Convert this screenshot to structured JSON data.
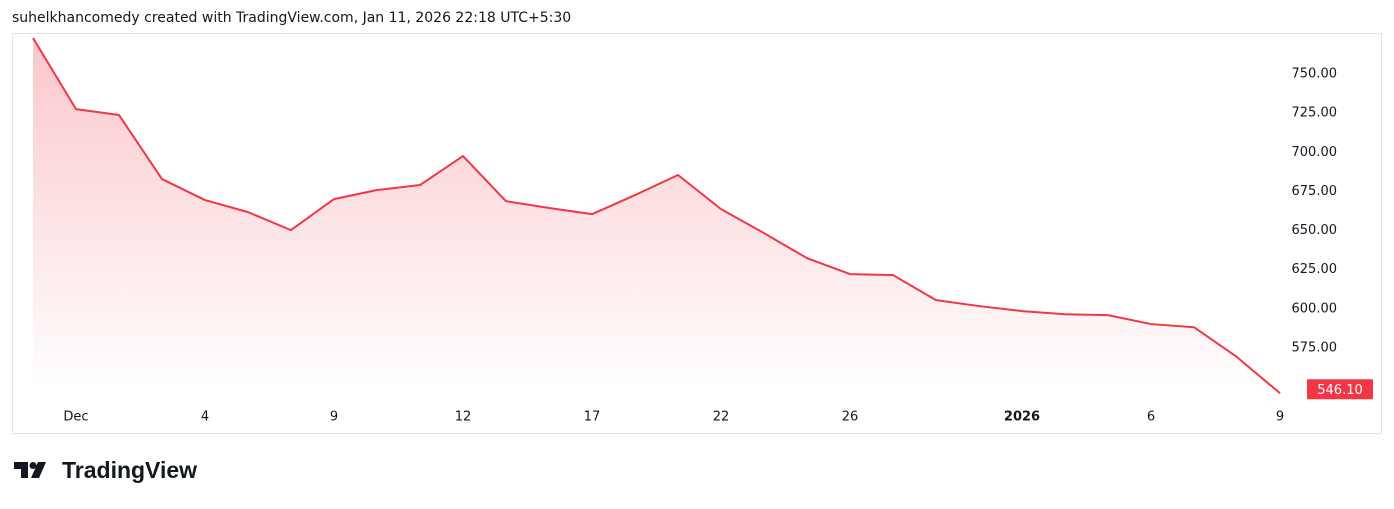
{
  "header": "suhelkhancomedy created with TradingView.com, Jan 11, 2026 22:18 UTC+5:30",
  "logo": "TradingView",
  "chart_data": {
    "type": "area",
    "categories": [
      null,
      "Dec",
      null,
      null,
      "4",
      null,
      null,
      "9",
      null,
      null,
      "12",
      null,
      null,
      "17",
      null,
      null,
      "22",
      null,
      null,
      "26",
      null,
      null,
      null,
      "2026",
      null,
      null,
      "6",
      null,
      null,
      "9"
    ],
    "values": [
      773,
      727.6,
      723.8,
      682.9,
      669.5,
      661.8,
      650.3,
      670.1,
      675.9,
      679.1,
      697.6,
      668.8,
      664.4,
      660.5,
      672.7,
      685.5,
      663.7,
      648.4,
      632.4,
      622.2,
      621.6,
      605.6,
      601.8,
      598.6,
      596.6,
      596.0,
      590.3,
      588.3,
      569.2,
      546.1
    ],
    "value_labels": [
      null,
      null,
      null,
      null,
      null,
      null,
      null,
      null,
      null,
      null,
      null,
      null,
      null,
      null,
      null,
      null,
      null,
      null,
      null,
      null,
      null,
      null,
      null,
      null,
      null,
      null,
      null,
      null,
      null,
      "546.10"
    ],
    "color": "#f23645",
    "ylim": [
      541.8,
      776.2
    ],
    "yticks": [
      {
        "value": 575,
        "label": "575.00"
      },
      {
        "value": 600,
        "label": "600.00"
      },
      {
        "value": 625,
        "label": "625.00"
      },
      {
        "value": 650,
        "label": "650.00"
      },
      {
        "value": 675,
        "label": "675.00"
      },
      {
        "value": 700,
        "label": "700.00"
      },
      {
        "value": 725,
        "label": "725.00"
      },
      {
        "value": 750,
        "label": "750.00"
      }
    ],
    "grid": false
  }
}
